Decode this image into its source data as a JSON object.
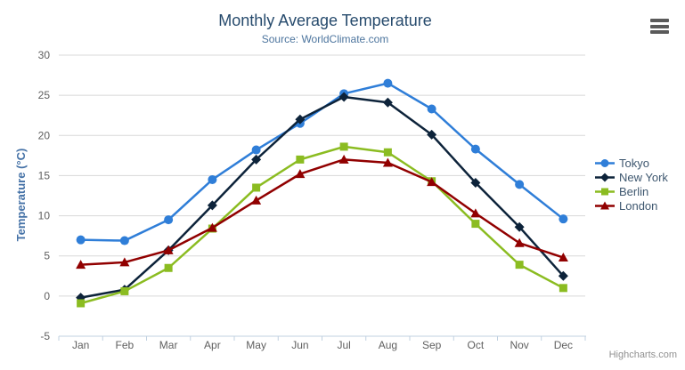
{
  "header": {
    "title": "Monthly Average Temperature",
    "subtitle": "Source: WorldClimate.com"
  },
  "toolbar": {
    "context_menu_icon": "hamburger-menu-icon"
  },
  "chart_data": {
    "type": "line",
    "title": "Monthly Average Temperature",
    "subtitle": "Source: WorldClimate.com",
    "categories": [
      "Jan",
      "Feb",
      "Mar",
      "Apr",
      "May",
      "Jun",
      "Jul",
      "Aug",
      "Sep",
      "Oct",
      "Nov",
      "Dec"
    ],
    "series": [
      {
        "name": "Tokyo",
        "color": "#2f7ed8",
        "marker": "circle",
        "values": [
          7.0,
          6.9,
          9.5,
          14.5,
          18.2,
          21.5,
          25.2,
          26.5,
          23.3,
          18.3,
          13.9,
          9.6
        ]
      },
      {
        "name": "New York",
        "color": "#0d233a",
        "marker": "diamond",
        "values": [
          -0.2,
          0.8,
          5.7,
          11.3,
          17.0,
          22.0,
          24.8,
          24.1,
          20.1,
          14.1,
          8.6,
          2.5
        ]
      },
      {
        "name": "Berlin",
        "color": "#8bbc21",
        "marker": "square",
        "values": [
          -0.9,
          0.6,
          3.5,
          8.4,
          13.5,
          17.0,
          18.6,
          17.9,
          14.3,
          9.0,
          3.9,
          1.0
        ]
      },
      {
        "name": "London",
        "color": "#910000",
        "marker": "triangle",
        "values": [
          3.9,
          4.2,
          5.7,
          8.5,
          11.9,
          15.2,
          17.0,
          16.6,
          14.2,
          10.3,
          6.6,
          4.8
        ]
      }
    ],
    "xlabel": "",
    "ylabel": "Temperature (°C)",
    "ylim": [
      -5,
      30
    ],
    "ytick_interval": 5,
    "yticks": [
      -5,
      0,
      5,
      10,
      15,
      20,
      25,
      30
    ],
    "grid": true,
    "legend_position": "right",
    "colors": {
      "grid": "#d8d8d8",
      "axis_line": "#c0d0e0",
      "tick_label": "#606060",
      "title": "#274b6d",
      "subtitle": "#4d759e",
      "axis_title": "#4572a7",
      "legend_text": "#3e576f",
      "credits": "#909090"
    }
  },
  "credits": {
    "label": "Highcharts.com"
  }
}
